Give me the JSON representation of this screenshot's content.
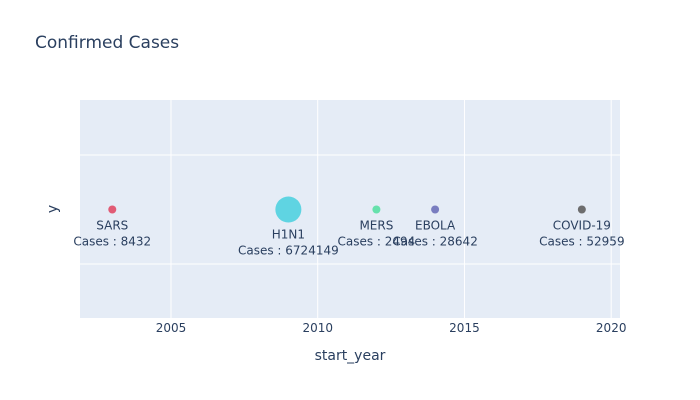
{
  "chart_data": {
    "type": "scatter",
    "title": "Confirmed Cases",
    "xlabel": "start_year",
    "ylabel": "y",
    "xlim": [
      2001.9,
      2020.3
    ],
    "x_ticks": [
      2005,
      2010,
      2015,
      2020
    ],
    "grid": true,
    "legend": "none",
    "points": [
      {
        "name": "SARS",
        "x": 2003,
        "label": "SARS",
        "hover": "Cases : 8432",
        "cases": 8432,
        "color": "#e0536e"
      },
      {
        "name": "H1N1",
        "x": 2009,
        "label": "H1N1",
        "hover": "Cases : 6724149",
        "cases": 6724149,
        "color": "#57d3e0"
      },
      {
        "name": "MERS",
        "x": 2012,
        "label": "MERS",
        "hover": "Cases : 2494",
        "cases": 2494,
        "color": "#5fe0a8"
      },
      {
        "name": "EBOLA",
        "x": 2014,
        "label": "EBOLA",
        "hover": "Cases : 28642",
        "cases": 28642,
        "color": "#7377bd"
      },
      {
        "name": "COVID-19",
        "x": 2019,
        "label": "COVID-19",
        "hover": "Cases : 52959",
        "cases": 52959,
        "color": "#666666"
      }
    ]
  }
}
